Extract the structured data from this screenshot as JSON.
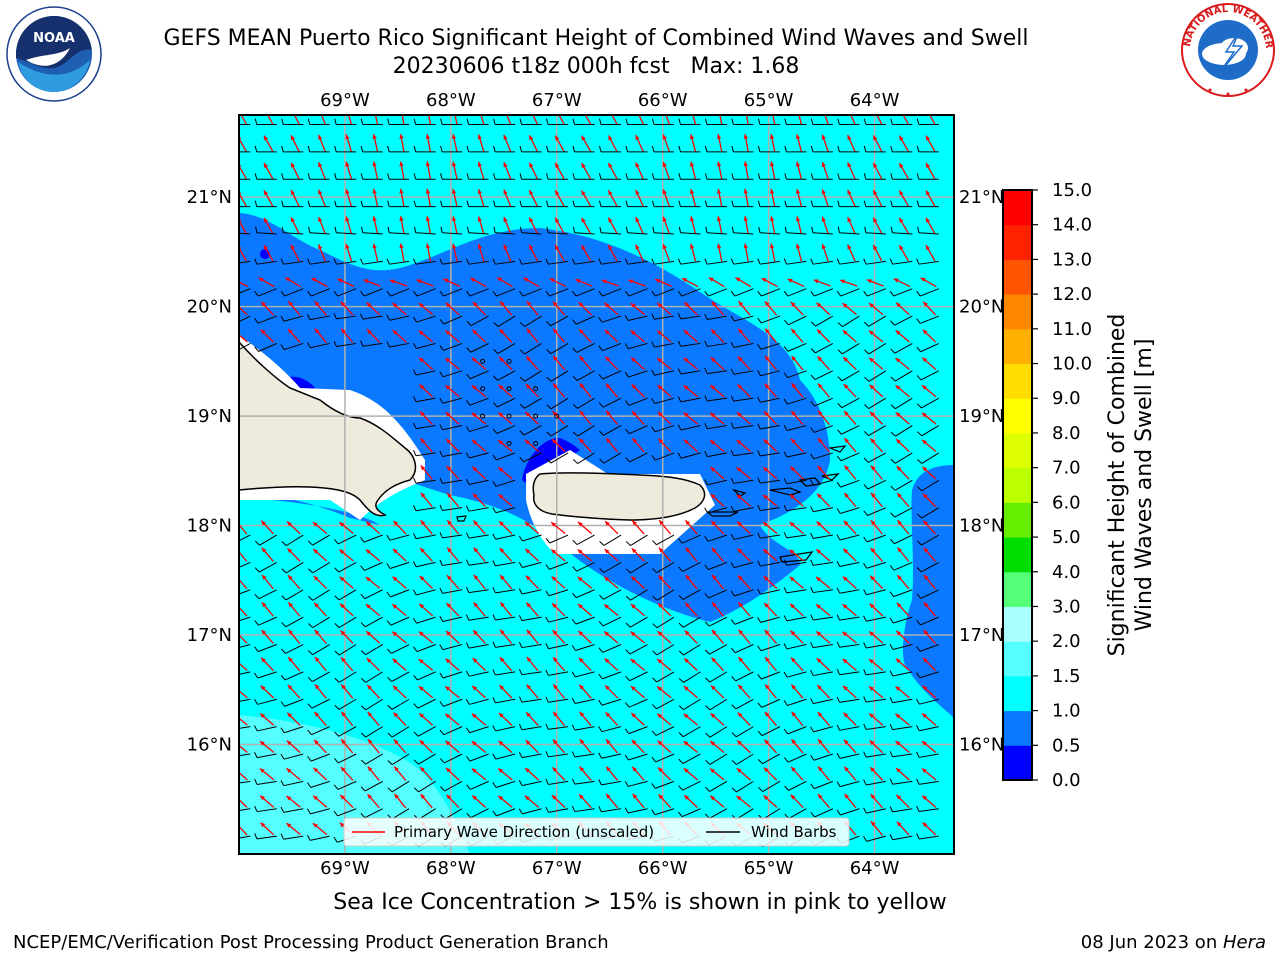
{
  "header": {
    "title": "GEFS MEAN Puerto Rico Significant Height of Combined Wind Waves and Swell",
    "subtitle": "20230606 t18z 000h fcst   Max: 1.68"
  },
  "logos": {
    "left": {
      "name": "noaa-logo",
      "text": "NOAA",
      "ring_text": "NATIONAL OCEANIC AND ATMOSPHERIC ADMINISTRATION · U.S. DEPARTMENT OF COMMERCE"
    },
    "right": {
      "name": "nws-logo",
      "ring_text": "NATIONAL WEATHER SERVICE"
    }
  },
  "chart_data": {
    "type": "heatmap",
    "longitude_ticks": [
      "69°W",
      "68°W",
      "67°W",
      "66°W",
      "65°W",
      "64°W"
    ],
    "latitude_ticks": [
      "21°N",
      "20°N",
      "19°N",
      "18°N",
      "17°N",
      "16°N"
    ],
    "longitude_values": [
      -69,
      -68,
      -67,
      -66,
      -65,
      -64
    ],
    "latitude_values": [
      21,
      20,
      19,
      18,
      17,
      16
    ],
    "xlim": [
      -70.0,
      -63.25
    ],
    "ylim": [
      15.0,
      21.75
    ],
    "grid": true,
    "colorbar": {
      "label": "Significant Height of Combined Wind Waves and Swell [m]",
      "label_lines": [
        "Significant Height of Combined",
        "Wind Waves and Swell [m]"
      ],
      "levels": [
        0.0,
        0.5,
        1.0,
        1.5,
        2.0,
        3.0,
        4.0,
        5.0,
        6.0,
        7.0,
        8.0,
        9.0,
        10.0,
        11.0,
        12.0,
        13.0,
        14.0,
        15.0
      ],
      "tick_labels": [
        "0.0",
        "0.5",
        "1.0",
        "1.5",
        "2.0",
        "3.0",
        "4.0",
        "5.0",
        "6.0",
        "7.0",
        "8.0",
        "9.0",
        "10.0",
        "11.0",
        "12.0",
        "13.0",
        "14.0",
        "15.0"
      ],
      "colors": [
        "#0000ff",
        "#0a78ff",
        "#00ffff",
        "#55ffff",
        "#aaffff",
        "#55ff77",
        "#00dd00",
        "#66ee00",
        "#bbff00",
        "#ddff00",
        "#ffff00",
        "#ffdd00",
        "#ffb000",
        "#ff8800",
        "#ff5500",
        "#ff2200",
        "#ff0000"
      ]
    },
    "field_summary": {
      "max": 1.68,
      "regions": [
        {
          "range": "0.5-1.0",
          "where": "north of Hispaniola and Puerto Rico, 18°N-20.8°N, and east near 63.5°W"
        },
        {
          "range": "1.0-1.5",
          "where": "open Caribbean and northern edge"
        },
        {
          "range": "1.5-2.0",
          "where": "south-west corner near 15°N-16°N"
        },
        {
          "range": "0.0-0.5",
          "where": "small patches near north coast of Puerto Rico and Hispaniola"
        }
      ]
    },
    "legend": {
      "placement": "bottom",
      "entries": [
        {
          "label": "Primary Wave Direction (unscaled)",
          "color": "#ff0000"
        },
        {
          "label": "Wind Barbs",
          "color": "#000000"
        }
      ]
    },
    "land_color": "#eeeadc"
  },
  "caption": "Sea Ice Concentration > 15% is shown in pink to yellow",
  "footer": {
    "left": "NCEP/EMC/Verification Post Processing Product Generation Branch",
    "right_date": "08 Jun 2023 on ",
    "right_host": "Hera"
  }
}
